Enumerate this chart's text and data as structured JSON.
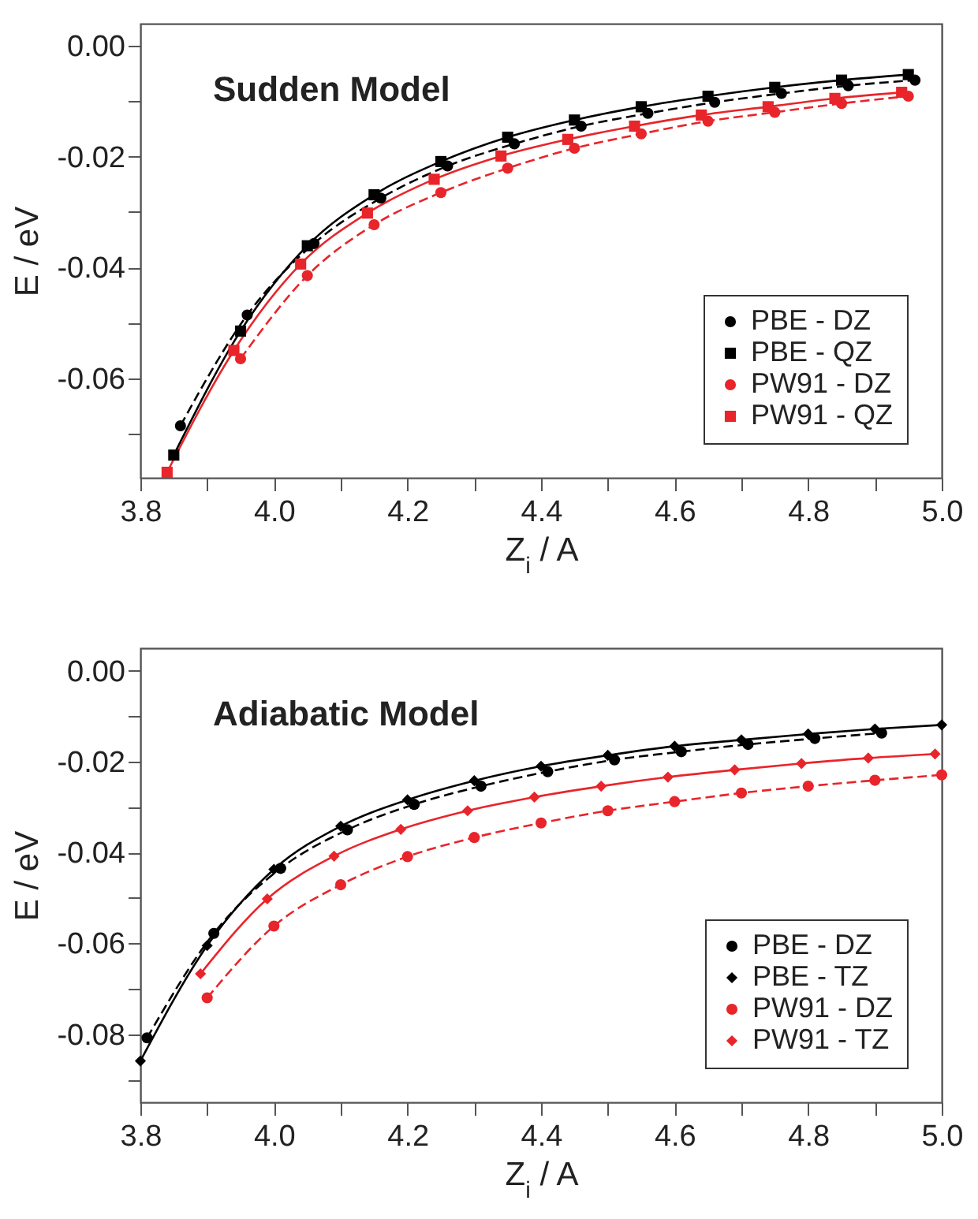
{
  "chart_data": [
    {
      "type": "line",
      "annotations": [
        "Sudden Model"
      ],
      "xlabel": "Z$_{i}$ / A",
      "ylabel": "E / eV",
      "legend": "bottom right",
      "grid": false,
      "xlim": [
        3.8,
        5.0
      ],
      "ylim": [
        -0.078,
        0.004
      ],
      "xticks": [
        {
          "value": 3.8,
          "label": "3.8"
        },
        {
          "value": 3.9,
          "label": null
        },
        {
          "value": 4.0,
          "label": "4.0"
        },
        {
          "value": 4.1,
          "label": null
        },
        {
          "value": 4.2,
          "label": "4.2"
        },
        {
          "value": 4.3,
          "label": null
        },
        {
          "value": 4.4,
          "label": "4.4"
        },
        {
          "value": 4.5,
          "label": null
        },
        {
          "value": 4.6,
          "label": "4.6"
        },
        {
          "value": 4.7,
          "label": null
        },
        {
          "value": 4.8,
          "label": "4.8"
        },
        {
          "value": 4.9,
          "label": null
        },
        {
          "value": 5.0,
          "label": "5.0"
        }
      ],
      "yticks": [
        {
          "value": -0.07,
          "label": null
        },
        {
          "value": -0.06,
          "label": "-0.06"
        },
        {
          "value": -0.05,
          "label": null
        },
        {
          "value": -0.04,
          "label": "-0.04"
        },
        {
          "value": -0.03,
          "label": null
        },
        {
          "value": -0.02,
          "label": "-0.02"
        },
        {
          "value": -0.01,
          "label": null
        },
        {
          "value": 0,
          "label": "0.00"
        }
      ],
      "series": [
        {
          "name": "PBE - DZ",
          "color": "#000000",
          "marker": "circle",
          "line_style": "dashed",
          "x": [
            3.86,
            3.96,
            4.06,
            4.16,
            4.26,
            4.36,
            4.46,
            4.56,
            4.66,
            4.76,
            4.86,
            4.96
          ],
          "values": [
            -0.0686,
            -0.0486,
            -0.0357,
            -0.0275,
            -0.0217,
            -0.0177,
            -0.0145,
            -0.0122,
            -0.0102,
            -0.0086,
            -0.0072,
            -0.0062
          ]
        },
        {
          "name": "PBE - QZ",
          "color": "#000000",
          "marker": "square",
          "line_style": "solid",
          "x": [
            3.85,
            3.95,
            4.05,
            4.15,
            4.25,
            4.35,
            4.45,
            4.55,
            4.65,
            4.75,
            4.85,
            4.95
          ],
          "values": [
            -0.0739,
            -0.0515,
            -0.0361,
            -0.0269,
            -0.0209,
            -0.0165,
            -0.0134,
            -0.011,
            -0.0091,
            -0.0075,
            -0.0062,
            -0.0052
          ]
        },
        {
          "name": "PW91 - DZ",
          "color": "#e8252a",
          "marker": "circle",
          "line_style": "dashed",
          "x": [
            3.95,
            4.05,
            4.15,
            4.25,
            4.35,
            4.45,
            4.55,
            4.65,
            4.75,
            4.85,
            4.95
          ],
          "values": [
            -0.0565,
            -0.0415,
            -0.0323,
            -0.0265,
            -0.0221,
            -0.0185,
            -0.0159,
            -0.0136,
            -0.012,
            -0.0104,
            -0.0091
          ]
        },
        {
          "name": "PW91 - QZ",
          "color": "#e8252a",
          "marker": "square",
          "line_style": "solid",
          "x": [
            3.84,
            3.94,
            4.04,
            4.14,
            4.24,
            4.34,
            4.44,
            4.54,
            4.64,
            4.74,
            4.84,
            4.94
          ],
          "values": [
            -0.077,
            -0.055,
            -0.0394,
            -0.0302,
            -0.0241,
            -0.0199,
            -0.0169,
            -0.0145,
            -0.0125,
            -0.011,
            -0.0095,
            -0.0084
          ]
        }
      ]
    },
    {
      "type": "line",
      "annotations": [
        "Adiabatic Model"
      ],
      "xlabel": "Z$_{i}$ / A",
      "ylabel": "E / eV",
      "legend": "bottom right",
      "grid": false,
      "xlim": [
        3.8,
        5.0
      ],
      "ylim": [
        -0.095,
        0.005
      ],
      "xticks": [
        {
          "value": 3.8,
          "label": "3.8"
        },
        {
          "value": 3.9,
          "label": null
        },
        {
          "value": 4.0,
          "label": "4.0"
        },
        {
          "value": 4.1,
          "label": null
        },
        {
          "value": 4.2,
          "label": "4.2"
        },
        {
          "value": 4.3,
          "label": null
        },
        {
          "value": 4.4,
          "label": "4.4"
        },
        {
          "value": 4.5,
          "label": null
        },
        {
          "value": 4.6,
          "label": "4.6"
        },
        {
          "value": 4.7,
          "label": null
        },
        {
          "value": 4.8,
          "label": "4.8"
        },
        {
          "value": 4.9,
          "label": null
        },
        {
          "value": 5.0,
          "label": "5.0"
        }
      ],
      "yticks": [
        {
          "value": -0.09,
          "label": null
        },
        {
          "value": -0.08,
          "label": "-0.08"
        },
        {
          "value": -0.07,
          "label": null
        },
        {
          "value": -0.06,
          "label": "-0.06"
        },
        {
          "value": -0.05,
          "label": null
        },
        {
          "value": -0.04,
          "label": "-0.04"
        },
        {
          "value": -0.03,
          "label": null
        },
        {
          "value": -0.02,
          "label": "-0.02"
        },
        {
          "value": -0.01,
          "label": null
        },
        {
          "value": 0,
          "label": "0.00"
        }
      ],
      "series": [
        {
          "name": "PBE - DZ",
          "color": "#000000",
          "marker": "circle",
          "line_style": "dashed",
          "x": [
            3.81,
            3.91,
            4.01,
            4.11,
            4.21,
            4.31,
            4.41,
            4.51,
            4.61,
            4.71,
            4.81,
            4.91
          ],
          "values": [
            -0.0808,
            -0.0578,
            -0.0435,
            -0.035,
            -0.0294,
            -0.0254,
            -0.0222,
            -0.0196,
            -0.0178,
            -0.0162,
            -0.0149,
            -0.0137
          ]
        },
        {
          "name": "PBE - TZ",
          "color": "#000000",
          "marker": "diamond",
          "line_style": "solid",
          "x": [
            3.8,
            3.9,
            4.0,
            4.1,
            4.2,
            4.3,
            4.4,
            4.5,
            4.6,
            4.7,
            4.8,
            4.9,
            5.0
          ],
          "values": [
            -0.0859,
            -0.0605,
            -0.0437,
            -0.0342,
            -0.0284,
            -0.0242,
            -0.021,
            -0.0186,
            -0.0166,
            -0.0152,
            -0.0139,
            -0.0128,
            -0.0119
          ]
        },
        {
          "name": "PW91 - DZ",
          "color": "#e8252a",
          "marker": "circle",
          "line_style": "dashed",
          "x": [
            3.9,
            4.0,
            4.1,
            4.2,
            4.3,
            4.4,
            4.5,
            4.6,
            4.7,
            4.8,
            4.9,
            5.0
          ],
          "values": [
            -0.072,
            -0.0562,
            -0.0471,
            -0.0409,
            -0.0367,
            -0.0335,
            -0.0308,
            -0.0288,
            -0.0269,
            -0.0254,
            -0.0241,
            -0.0229
          ]
        },
        {
          "name": "PW91 - TZ",
          "color": "#e8252a",
          "marker": "diamond",
          "line_style": "solid",
          "x": [
            3.89,
            3.99,
            4.09,
            4.19,
            4.29,
            4.39,
            4.49,
            4.59,
            4.69,
            4.79,
            4.89,
            4.99
          ],
          "values": [
            -0.0667,
            -0.0502,
            -0.0408,
            -0.0349,
            -0.0308,
            -0.0278,
            -0.0254,
            -0.0234,
            -0.0218,
            -0.0204,
            -0.0192,
            -0.0183
          ]
        }
      ]
    }
  ]
}
